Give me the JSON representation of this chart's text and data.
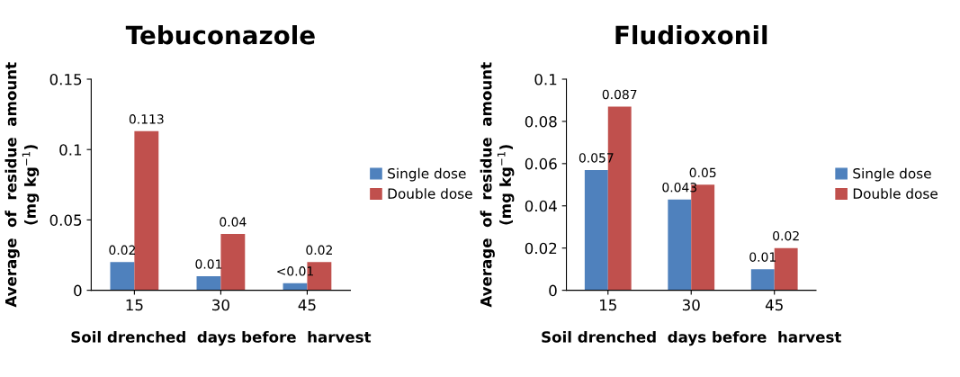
{
  "chart_data": [
    {
      "type": "bar",
      "title": "Tebuconazole",
      "xlabel": "Soil drenched  days before  harvest",
      "ylabel": "Average  of  residue  amount\n(mg kg$^{−1}$)",
      "categories": [
        "15",
        "30",
        "45"
      ],
      "series": [
        {
          "name": "Single dose",
          "color": "#4f81bd",
          "values": [
            0.02,
            0.01,
            0.005
          ],
          "value_labels": [
            "0.02",
            "0.01",
            "<0.01"
          ]
        },
        {
          "name": "Double dose",
          "color": "#c0504d",
          "values": [
            0.113,
            0.04,
            0.02
          ],
          "value_labels": [
            "0.113",
            "0.04",
            "0.02"
          ]
        }
      ],
      "ylim": [
        0,
        0.15
      ],
      "yticks": [
        0,
        0.05,
        0.1,
        0.15
      ],
      "legend": "right",
      "grid": false
    },
    {
      "type": "bar",
      "title": "Fludioxonil",
      "xlabel": "Soil drenched  days before  harvest",
      "ylabel": "Average  of  residue  amount\n(mg kg$^{−1}$)",
      "categories": [
        "15",
        "30",
        "45"
      ],
      "series": [
        {
          "name": "Single dose",
          "color": "#4f81bd",
          "values": [
            0.057,
            0.043,
            0.01
          ]
        },
        {
          "name": "Double dose",
          "color": "#c0504d",
          "values": [
            0.087,
            0.05,
            0.02
          ]
        }
      ],
      "ylim": [
        0,
        0.1
      ],
      "yticks": [
        0,
        0.02,
        0.04,
        0.06,
        0.08,
        0.1
      ],
      "data_labels": true,
      "legend": "right",
      "grid": false
    }
  ]
}
